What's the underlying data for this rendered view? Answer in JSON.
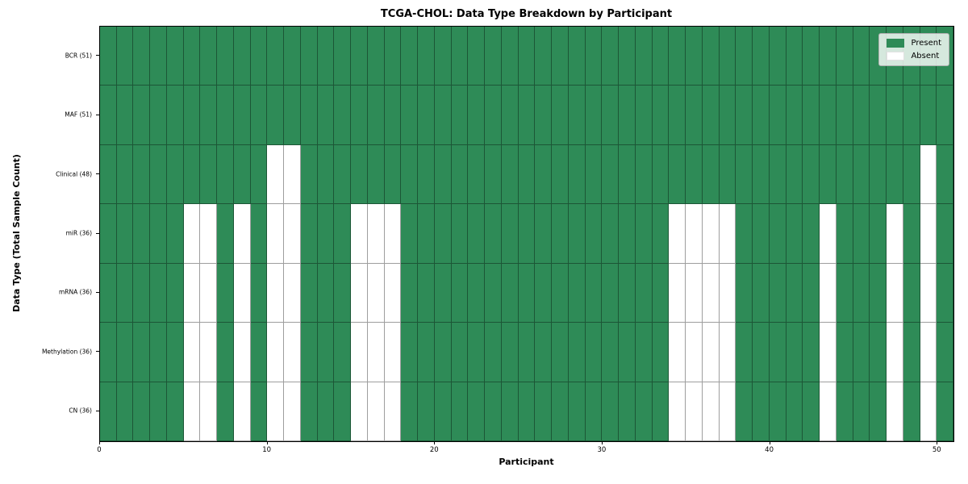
{
  "title": "TCGA-CHOL: Data Type Breakdown by Participant",
  "chart_data": {
    "type": "heatmap",
    "title": "TCGA-CHOL: Data Type Breakdown by Participant",
    "xlabel": "Participant",
    "ylabel": "Data Type (Total Sample Count)",
    "n_participants": 51,
    "x_axis_range": [
      0,
      51
    ],
    "x_ticks": [
      0,
      10,
      20,
      30,
      40,
      50
    ],
    "grid": "cell-borders",
    "legend_position": "upper-right",
    "legend": [
      {
        "label": "Present",
        "color": "#2E8B57"
      },
      {
        "label": "Absent",
        "color": "#FFFFFF"
      }
    ],
    "rows": [
      {
        "label": "BCR (51)",
        "data_type": "BCR",
        "total_sample_count": 51,
        "absent_participants": []
      },
      {
        "label": "MAF (51)",
        "data_type": "MAF",
        "total_sample_count": 51,
        "absent_participants": []
      },
      {
        "label": "Clinical (48)",
        "data_type": "Clinical",
        "total_sample_count": 48,
        "absent_participants": [
          10,
          11,
          49
        ]
      },
      {
        "label": "miR (36)",
        "data_type": "miR",
        "total_sample_count": 36,
        "absent_participants": [
          5,
          6,
          8,
          10,
          11,
          15,
          16,
          17,
          34,
          35,
          36,
          37,
          43,
          47,
          49
        ]
      },
      {
        "label": "mRNA (36)",
        "data_type": "mRNA",
        "total_sample_count": 36,
        "absent_participants": [
          5,
          6,
          8,
          10,
          11,
          15,
          16,
          17,
          34,
          35,
          36,
          37,
          43,
          47,
          49
        ]
      },
      {
        "label": "Methylation (36)",
        "data_type": "Methylation",
        "total_sample_count": 36,
        "absent_participants": [
          5,
          6,
          8,
          10,
          11,
          15,
          16,
          17,
          34,
          35,
          36,
          37,
          43,
          47,
          49
        ]
      },
      {
        "label": "CN (36)",
        "data_type": "CN",
        "total_sample_count": 36,
        "absent_participants": [
          5,
          6,
          8,
          10,
          11,
          15,
          16,
          17,
          34,
          35,
          36,
          37,
          43,
          47,
          49
        ]
      }
    ],
    "colors": {
      "present": "#2E8B57",
      "absent": "#FFFFFF",
      "cell_border": "rgba(0,0,0,0.38)",
      "spine": "#000000"
    }
  }
}
